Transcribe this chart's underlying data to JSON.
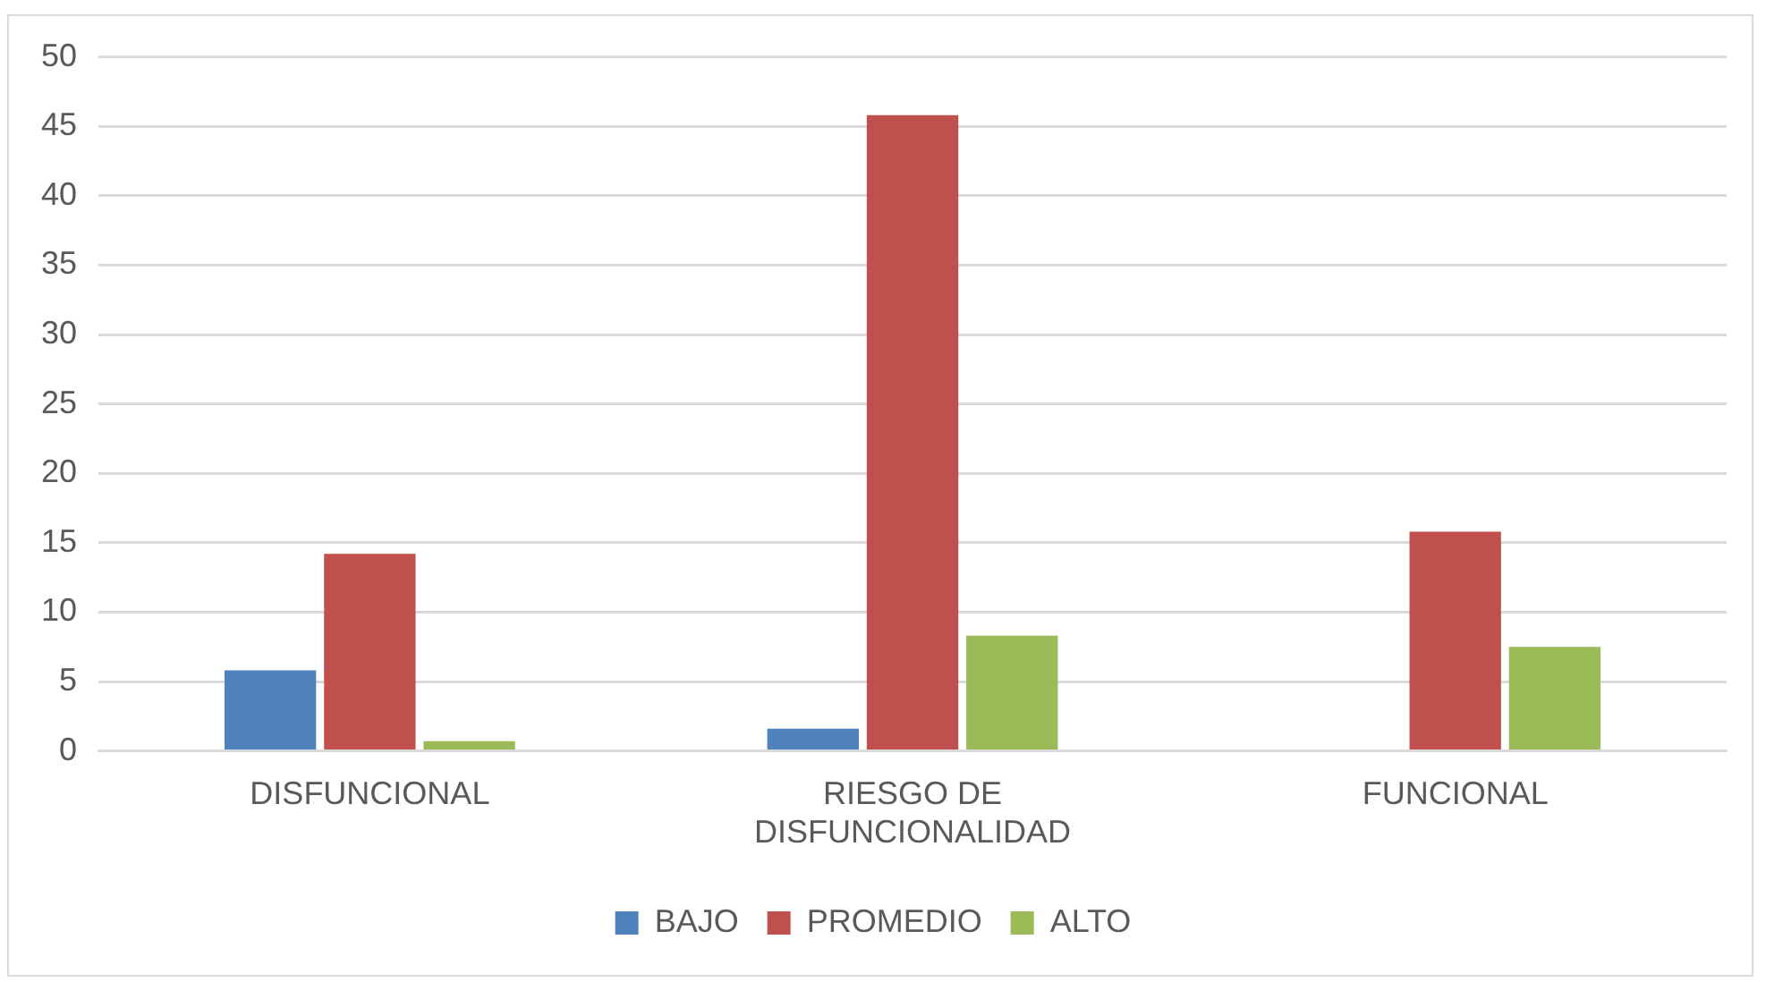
{
  "chart_data": {
    "type": "bar",
    "categories": [
      "DISFUNCIONAL",
      "RIESGO DE DISFUNCIONALIDAD",
      "FUNCIONAL"
    ],
    "series": [
      {
        "name": "BAJO",
        "color": "#4f81bd",
        "values": [
          5.8,
          1.6,
          0
        ]
      },
      {
        "name": "PROMEDIO",
        "color": "#c0504d",
        "values": [
          14.2,
          45.8,
          15.8
        ]
      },
      {
        "name": "ALTO",
        "color": "#9bbb59",
        "values": [
          0.7,
          8.3,
          7.5
        ]
      }
    ],
    "ylim": [
      0,
      50
    ],
    "yticks": [
      0,
      5,
      10,
      15,
      20,
      25,
      30,
      35,
      40,
      45,
      50
    ],
    "grid": "y",
    "legend": "bottom"
  }
}
